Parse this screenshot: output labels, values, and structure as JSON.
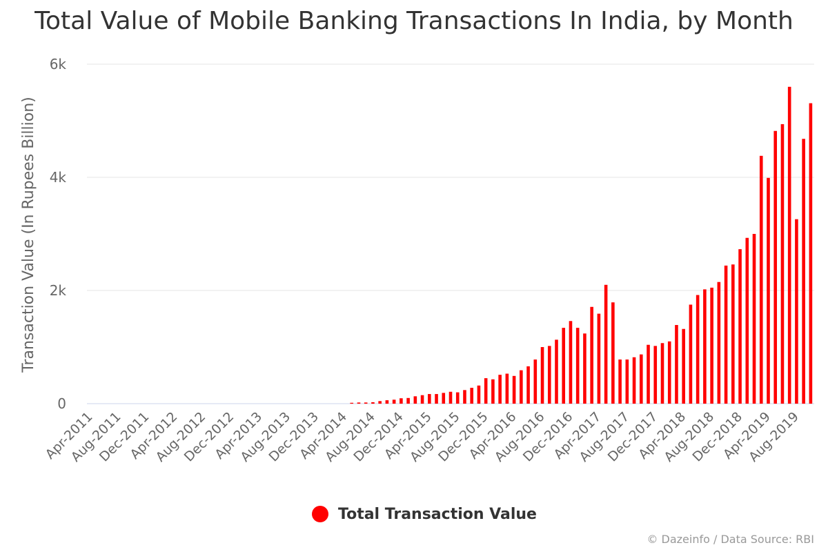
{
  "chart_data": {
    "type": "bar",
    "title": "Total Value of Mobile Banking Transactions In India, by Month",
    "ylabel": "Transaction Value (In Rupees Billion)",
    "xlabel": "",
    "ylim": [
      0,
      6000
    ],
    "yticks": [
      0,
      2000,
      4000,
      6000
    ],
    "ytick_labels": [
      "0",
      "2k",
      "4k",
      "6k"
    ],
    "start_month": "Apr-2011",
    "x_tick_labels": [
      "Apr-2011",
      "Aug-2011",
      "Dec-2011",
      "Apr-2012",
      "Aug-2012",
      "Dec-2012",
      "Apr-2013",
      "Aug-2013",
      "Dec-2013",
      "Apr-2014",
      "Aug-2014",
      "Dec-2014",
      "Apr-2015",
      "Aug-2015",
      "Dec-2015",
      "Apr-2016",
      "Aug-2016",
      "Dec-2016",
      "Apr-2017",
      "Aug-2017",
      "Dec-2017",
      "Apr-2018",
      "Aug-2018",
      "Dec-2018",
      "Apr-2019",
      "Aug-2019"
    ],
    "grid": true,
    "legend_position": "bottom-center",
    "color": "#ff0000",
    "series": [
      {
        "name": "Total Transaction Value",
        "values": [
          0,
          0,
          0,
          0,
          0,
          0,
          0,
          0,
          0,
          0,
          0,
          0,
          0,
          0,
          0,
          0,
          0,
          0,
          0,
          0,
          0,
          0,
          0,
          0,
          0,
          0,
          0,
          0,
          0,
          0,
          0,
          0,
          0,
          0,
          0,
          0,
          0,
          15,
          20,
          20,
          25,
          45,
          60,
          70,
          95,
          100,
          130,
          150,
          170,
          170,
          190,
          210,
          200,
          240,
          280,
          320,
          450,
          430,
          510,
          530,
          490,
          590,
          660,
          780,
          1000,
          1020,
          1130,
          1340,
          1460,
          1340,
          1240,
          1710,
          1590,
          2100,
          1790,
          780,
          780,
          820,
          870,
          1040,
          1020,
          1070,
          1100,
          1390,
          1320,
          1750,
          1920,
          2020,
          2050,
          2150,
          2440,
          2460,
          2730,
          2930,
          3000,
          4380,
          3990,
          4820,
          4940,
          5600,
          3260,
          4680,
          5310
        ]
      }
    ]
  },
  "credits": "© Dazeinfo / Data Source: RBI"
}
